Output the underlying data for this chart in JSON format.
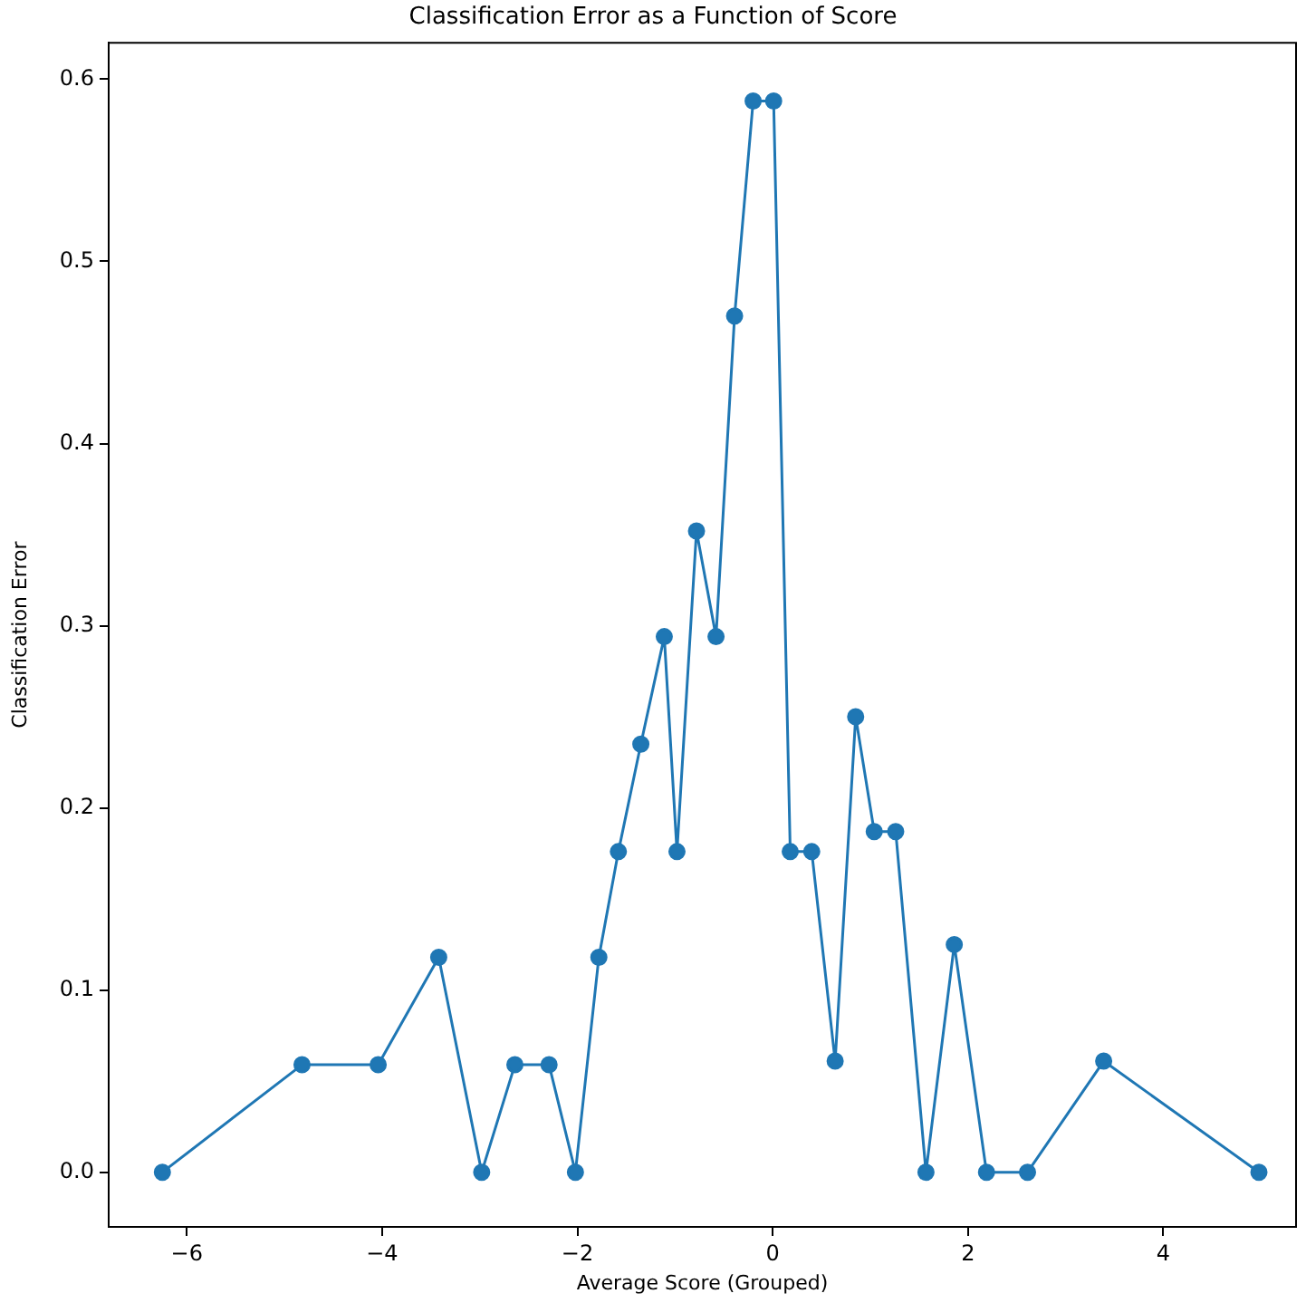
{
  "chart_data": {
    "type": "line",
    "title": "Classification Error as a Function of Score",
    "xlabel": "Average Score (Grouped)",
    "ylabel": "Classification Error",
    "x": [
      -6.25,
      -4.82,
      -4.04,
      -3.42,
      -2.98,
      -2.64,
      -2.29,
      -2.02,
      -1.78,
      -1.58,
      -1.35,
      -1.11,
      -0.98,
      -0.78,
      -0.58,
      -0.39,
      -0.2,
      0.01,
      0.18,
      0.4,
      0.64,
      0.85,
      1.04,
      1.26,
      1.57,
      1.86,
      2.19,
      2.61,
      3.39,
      4.98
    ],
    "series": [
      {
        "color": "#1f77b4",
        "values": [
          0,
          0.059,
          0.059,
          0.118,
          0,
          0.059,
          0.059,
          0,
          0.118,
          0.176,
          0.235,
          0.294,
          0.176,
          0.352,
          0.294,
          0.47,
          0.588,
          0.588,
          0.176,
          0.176,
          0.061,
          0.25,
          0.187,
          0.187,
          0,
          0.125,
          0,
          0,
          0.061,
          0
        ]
      }
    ],
    "xlim": [
      -6.8,
      5.36
    ],
    "ylim": [
      -0.03,
      0.62
    ],
    "xticks": [
      {
        "value": -6,
        "label": "−6"
      },
      {
        "value": -4,
        "label": "−4"
      },
      {
        "value": -2,
        "label": "−2"
      },
      0,
      2,
      4
    ],
    "yticks": [
      {
        "value": 0,
        "label": "0.0"
      },
      0.1,
      0.2,
      0.3,
      0.4,
      0.5,
      0.6
    ],
    "grid": false,
    "legend": false,
    "marker": "circle",
    "line_style": "solid"
  }
}
